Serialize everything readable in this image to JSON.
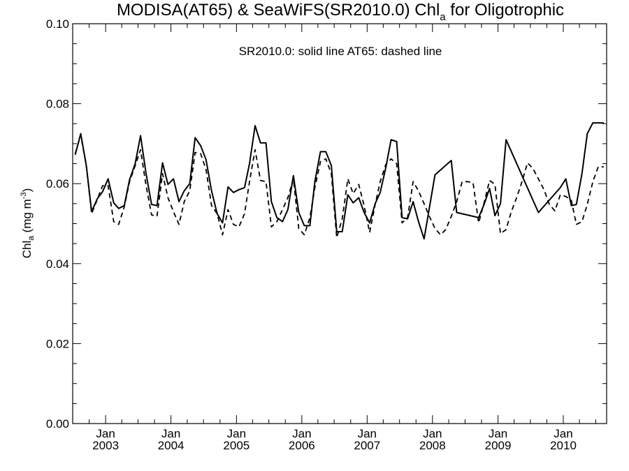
{
  "chart_data": {
    "type": "line",
    "title_main": "MODISA(AT65) & SeaWiFS(SR2010.0)  Chl",
    "title_sub": "a",
    "title_tail": " for Oligotrophic",
    "annotation": "SR2010.0: solid line   AT65: dashed line",
    "ylabel_main": "Chl",
    "ylabel_sub": "a",
    "ylabel_unit": " (mg m",
    "ylabel_sup": "-3",
    "ylabel_close": ")",
    "ylim": [
      0.0,
      0.1
    ],
    "xlim": [
      "2002-07-01",
      "2010-08-31"
    ],
    "yticks": [
      "0.00",
      "0.02",
      "0.04",
      "0.06",
      "0.08",
      "0.10"
    ],
    "xticks": [
      {
        "month": "Jan",
        "year": "2003",
        "date": "2003-01-01"
      },
      {
        "month": "Jan",
        "year": "2004",
        "date": "2004-01-01"
      },
      {
        "month": "Jan",
        "year": "2005",
        "date": "2005-01-01"
      },
      {
        "month": "Jan",
        "year": "2006",
        "date": "2006-01-01"
      },
      {
        "month": "Jan",
        "year": "2007",
        "date": "2007-01-01"
      },
      {
        "month": "Jan",
        "year": "2008",
        "date": "2008-01-01"
      },
      {
        "month": "Jan",
        "year": "2009",
        "date": "2009-01-01"
      },
      {
        "month": "Jan",
        "year": "2010",
        "date": "2010-01-01"
      }
    ],
    "series": [
      {
        "style": "solid",
        "x": [
          "2002-07",
          "2002-08",
          "2002-09",
          "2002-10",
          "2002-11",
          "2002-12",
          "2003-01",
          "2003-02",
          "2003-03",
          "2003-04",
          "2003-05",
          "2003-06",
          "2003-07",
          "2003-08",
          "2003-09",
          "2003-10",
          "2003-11",
          "2003-12",
          "2004-01",
          "2004-02",
          "2004-03",
          "2004-04",
          "2004-05",
          "2004-06",
          "2004-07",
          "2004-08",
          "2004-09",
          "2004-10",
          "2004-11",
          "2004-12",
          "2005-01",
          "2005-02",
          "2005-03",
          "2005-04",
          "2005-05",
          "2005-06",
          "2005-07",
          "2005-08",
          "2005-09",
          "2005-10",
          "2005-11",
          "2005-12",
          "2006-01",
          "2006-02",
          "2006-03",
          "2006-04",
          "2006-05",
          "2006-06",
          "2006-07",
          "2006-08",
          "2006-09",
          "2006-10",
          "2006-11",
          "2006-12",
          "2007-01",
          "2007-02",
          "2007-03",
          "2007-04",
          "2007-05",
          "2007-06",
          "2007-07",
          "2007-08",
          "2007-09",
          "2007-10",
          "2007-11",
          "2008-01",
          "2008-04",
          "2008-05",
          "2008-09",
          "2008-10",
          "2008-11",
          "2008-12",
          "2009-01",
          "2009-02",
          "2009-08",
          "2009-12",
          "2010-01",
          "2010-02",
          "2010-03",
          "2010-04",
          "2010-05",
          "2010-06",
          "2010-07",
          "2010-08"
        ],
        "values": [
          0.0672,
          0.0725,
          0.0645,
          0.053,
          0.0562,
          0.058,
          0.0612,
          0.0552,
          0.0538,
          0.0545,
          0.061,
          0.065,
          0.072,
          0.0625,
          0.0548,
          0.0545,
          0.0652,
          0.0598,
          0.0612,
          0.0555,
          0.0582,
          0.06,
          0.0715,
          0.0695,
          0.066,
          0.0582,
          0.0525,
          0.0502,
          0.0592,
          0.0578,
          0.0585,
          0.059,
          0.065,
          0.0745,
          0.0702,
          0.0702,
          0.0555,
          0.0515,
          0.0505,
          0.0535,
          0.062,
          0.0528,
          0.0495,
          0.0495,
          0.0605,
          0.068,
          0.068,
          0.0645,
          0.048,
          0.048,
          0.0572,
          0.0552,
          0.0565,
          0.0528,
          0.0502,
          0.055,
          0.0578,
          0.064,
          0.071,
          0.0705,
          0.0515,
          0.0512,
          0.0555,
          0.0505,
          0.0462,
          0.0622,
          0.0658,
          0.0528,
          0.0515,
          0.0548,
          0.0588,
          0.052,
          0.055,
          0.071,
          0.0528,
          0.059,
          0.0612,
          0.0545,
          0.0548,
          0.0625,
          0.0725,
          0.0752,
          0.0752,
          0.0752
        ]
      },
      {
        "style": "dashed",
        "x": [
          "2002-07",
          "2002-08",
          "2002-09",
          "2002-10",
          "2002-11",
          "2002-12",
          "2003-01",
          "2003-02",
          "2003-03",
          "2003-04",
          "2003-05",
          "2003-06",
          "2003-07",
          "2003-08",
          "2003-09",
          "2003-10",
          "2003-11",
          "2003-12",
          "2004-01",
          "2004-02",
          "2004-03",
          "2004-04",
          "2004-05",
          "2004-06",
          "2004-07",
          "2004-08",
          "2004-09",
          "2004-10",
          "2004-11",
          "2004-12",
          "2005-01",
          "2005-02",
          "2005-03",
          "2005-04",
          "2005-05",
          "2005-06",
          "2005-07",
          "2005-08",
          "2005-09",
          "2005-10",
          "2005-11",
          "2005-12",
          "2006-01",
          "2006-02",
          "2006-03",
          "2006-04",
          "2006-05",
          "2006-06",
          "2006-07",
          "2006-08",
          "2006-09",
          "2006-10",
          "2006-11",
          "2006-12",
          "2007-01",
          "2007-02",
          "2007-03",
          "2007-04",
          "2007-05",
          "2007-06",
          "2007-07",
          "2007-08",
          "2007-09",
          "2007-10",
          "2007-11",
          "2007-12",
          "2008-01",
          "2008-02",
          "2008-03",
          "2008-04",
          "2008-05",
          "2008-06",
          "2008-07",
          "2008-08",
          "2008-09",
          "2008-10",
          "2008-11",
          "2008-12",
          "2009-01",
          "2009-02",
          "2009-03",
          "2009-04",
          "2009-05",
          "2009-06",
          "2009-07",
          "2009-08",
          "2009-09",
          "2009-10",
          "2009-11",
          "2009-12",
          "2010-01",
          "2010-02",
          "2010-03",
          "2010-04",
          "2010-05",
          "2010-06",
          "2010-07",
          "2010-08"
        ],
        "values": [
          0.0675,
          0.0722,
          0.0645,
          0.0525,
          0.056,
          0.0595,
          0.0595,
          0.0505,
          0.0498,
          0.0542,
          0.0605,
          0.0645,
          0.0685,
          0.0595,
          0.0522,
          0.0518,
          0.0625,
          0.0565,
          0.053,
          0.0498,
          0.0555,
          0.0582,
          0.0678,
          0.0675,
          0.0635,
          0.0545,
          0.0525,
          0.0472,
          0.0535,
          0.0498,
          0.0492,
          0.0525,
          0.0605,
          0.0685,
          0.0608,
          0.0605,
          0.0492,
          0.0505,
          0.0535,
          0.0565,
          0.0612,
          0.0488,
          0.0472,
          0.0515,
          0.059,
          0.0655,
          0.0662,
          0.0625,
          0.0465,
          0.0512,
          0.0612,
          0.0575,
          0.0598,
          0.0545,
          0.0478,
          0.0548,
          0.0605,
          0.0648,
          0.0662,
          0.065,
          0.0502,
          0.0515,
          0.0605,
          0.0582,
          0.055,
          0.0518,
          0.0488,
          0.0472,
          0.0485,
          0.0518,
          0.0555,
          0.0605,
          0.0605,
          0.0602,
          0.0502,
          0.0552,
          0.0608,
          0.0598,
          0.0475,
          0.0485,
          0.0528,
          0.0565,
          0.0605,
          0.0652,
          0.0638,
          0.0612,
          0.0585,
          0.0548,
          0.0532,
          0.0572,
          0.0568,
          0.0558,
          0.0498,
          0.0505,
          0.0548,
          0.0605,
          0.0642,
          0.0642
        ]
      }
    ]
  }
}
